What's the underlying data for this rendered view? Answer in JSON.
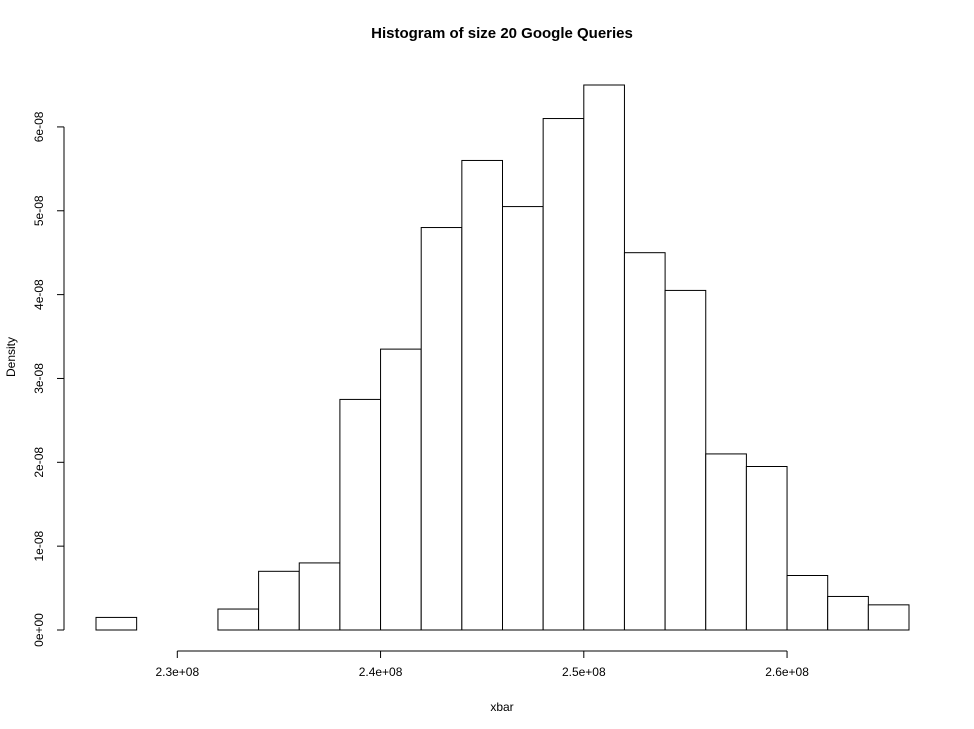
{
  "chart_data": {
    "type": "bar",
    "title": "Histogram of size 20 Google Queries",
    "xlabel": "xbar",
    "ylabel": "Density",
    "xlim": [
      226000000,
      266000000
    ],
    "ylim": [
      0,
      6.5e-08
    ],
    "bin_edges": [
      226000000,
      228000000,
      230000000,
      232000000,
      234000000,
      236000000,
      238000000,
      240000000,
      242000000,
      244000000,
      246000000,
      248000000,
      250000000,
      252000000,
      254000000,
      256000000,
      258000000,
      260000000,
      262000000,
      264000000,
      266000000
    ],
    "values": [
      1.5e-09,
      0,
      0,
      2.5e-09,
      7e-09,
      8e-09,
      2.75e-08,
      3.35e-08,
      4.8e-08,
      5.6e-08,
      5.05e-08,
      6.1e-08,
      6.5e-08,
      4.5e-08,
      4.05e-08,
      2.1e-08,
      1.95e-08,
      6.5e-09,
      4e-09,
      3e-09
    ],
    "x_ticks": [
      {
        "value": 230000000,
        "label": "2.3e+08"
      },
      {
        "value": 240000000,
        "label": "2.4e+08"
      },
      {
        "value": 250000000,
        "label": "2.5e+08"
      },
      {
        "value": 260000000,
        "label": "2.6e+08"
      }
    ],
    "y_ticks": [
      {
        "value": 0,
        "label": "0e+00"
      },
      {
        "value": 1e-08,
        "label": "1e-08"
      },
      {
        "value": 2e-08,
        "label": "2e-08"
      },
      {
        "value": 3e-08,
        "label": "3e-08"
      },
      {
        "value": 4e-08,
        "label": "4e-08"
      },
      {
        "value": 5e-08,
        "label": "5e-08"
      },
      {
        "value": 6e-08,
        "label": "6e-08"
      }
    ],
    "grid": false
  }
}
